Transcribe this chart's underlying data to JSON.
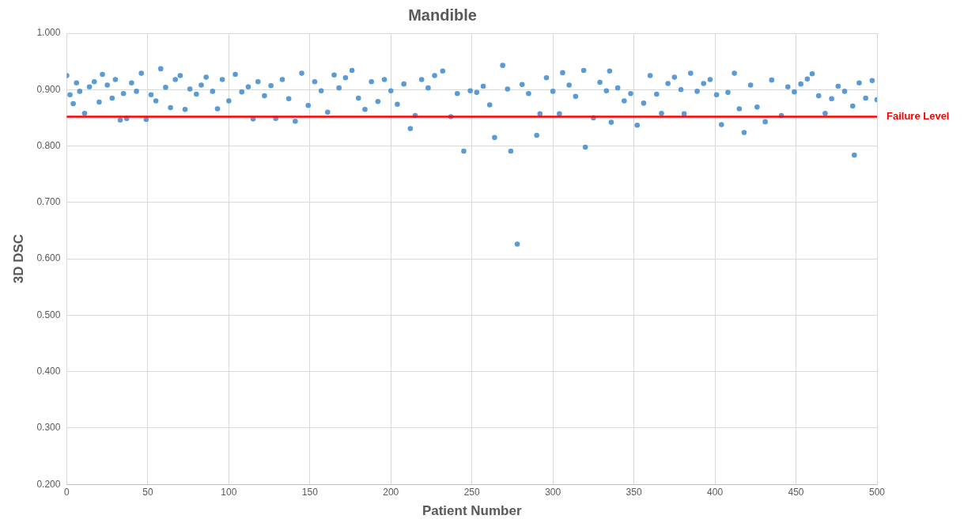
{
  "chart_data": {
    "type": "scatter",
    "title": "Mandible",
    "xlabel": "Patient Number",
    "ylabel": "3D DSC",
    "xlim": [
      0,
      500
    ],
    "xticks": [
      0,
      50,
      100,
      150,
      200,
      250,
      300,
      350,
      400,
      450,
      500
    ],
    "ylim": [
      0.2,
      1.0
    ],
    "yticks": [
      {
        "value": 0.2,
        "label": "0.200"
      },
      {
        "value": 0.3,
        "label": "0.300"
      },
      {
        "value": 0.4,
        "label": "0.400"
      },
      {
        "value": 0.5,
        "label": "0.500"
      },
      {
        "value": 0.6,
        "label": "0.600"
      },
      {
        "value": 0.7,
        "label": "0.700"
      },
      {
        "value": 0.8,
        "label": "0.800"
      },
      {
        "value": 0.9,
        "label": "0.900"
      },
      {
        "value": 1.0,
        "label": "1.000"
      }
    ],
    "grid": true,
    "legend": false,
    "marker": "circle",
    "ref_lines": [
      {
        "axis": "y",
        "value": 0.852,
        "label": "Failure Level",
        "color": "#ff0000"
      }
    ],
    "series": [
      {
        "color": "#5b9bd5",
        "x": [
          0,
          2,
          4,
          6,
          8,
          11,
          14,
          17,
          20,
          22,
          25,
          28,
          30,
          33,
          35,
          37,
          40,
          43,
          46,
          49,
          52,
          55,
          58,
          61,
          64,
          67,
          70,
          73,
          76,
          80,
          83,
          86,
          90,
          93,
          96,
          100,
          104,
          108,
          112,
          115,
          118,
          122,
          126,
          129,
          133,
          137,
          141,
          145,
          149,
          153,
          157,
          161,
          165,
          168,
          172,
          176,
          180,
          184,
          188,
          192,
          196,
          200,
          204,
          208,
          212,
          215,
          219,
          223,
          227,
          232,
          237,
          241,
          245,
          249,
          253,
          257,
          261,
          264,
          269,
          272,
          274,
          278,
          281,
          285,
          290,
          292,
          296,
          300,
          304,
          306,
          310,
          314,
          319,
          320,
          325,
          329,
          333,
          335,
          336,
          340,
          344,
          348,
          352,
          356,
          360,
          364,
          367,
          371,
          375,
          379,
          381,
          385,
          389,
          393,
          397,
          401,
          404,
          408,
          412,
          415,
          418,
          422,
          426,
          431,
          435,
          441,
          445,
          449,
          453,
          457,
          460,
          464,
          468,
          472,
          476,
          480,
          485,
          486,
          489,
          493,
          497,
          500
        ],
        "values": [
          0.925,
          0.891,
          0.875,
          0.912,
          0.897,
          0.858,
          0.905,
          0.914,
          0.878,
          0.927,
          0.908,
          0.885,
          0.918,
          0.846,
          0.893,
          0.849,
          0.912,
          0.897,
          0.929,
          0.847,
          0.891,
          0.88,
          0.937,
          0.904,
          0.868,
          0.918,
          0.925,
          0.865,
          0.901,
          0.892,
          0.908,
          0.922,
          0.897,
          0.866,
          0.918,
          0.88,
          0.927,
          0.896,
          0.905,
          0.848,
          0.914,
          0.889,
          0.907,
          0.849,
          0.918,
          0.884,
          0.844,
          0.929,
          0.872,
          0.914,
          0.898,
          0.86,
          0.926,
          0.903,
          0.921,
          0.934,
          0.885,
          0.865,
          0.914,
          0.879,
          0.918,
          0.898,
          0.874,
          0.91,
          0.831,
          0.854,
          0.918,
          0.903,
          0.925,
          0.933,
          0.852,
          0.893,
          0.791,
          0.898,
          0.895,
          0.906,
          0.873,
          0.815,
          0.943,
          0.901,
          0.791,
          0.626,
          0.909,
          0.893,
          0.819,
          0.857,
          0.921,
          0.897,
          0.857,
          0.93,
          0.908,
          0.888,
          0.934,
          0.798,
          0.85,
          0.913,
          0.898,
          0.933,
          0.842,
          0.903,
          0.88,
          0.893,
          0.837,
          0.876,
          0.925,
          0.892,
          0.858,
          0.911,
          0.922,
          0.9,
          0.857,
          0.929,
          0.897,
          0.911,
          0.918,
          0.891,
          0.838,
          0.895,
          0.929,
          0.866,
          0.824,
          0.908,
          0.869,
          0.843,
          0.917,
          0.854,
          0.905,
          0.896,
          0.91,
          0.919,
          0.928,
          0.889,
          0.858,
          0.884,
          0.906,
          0.897,
          0.871,
          0.784,
          0.912,
          0.885,
          0.916,
          0.882
        ]
      }
    ]
  }
}
